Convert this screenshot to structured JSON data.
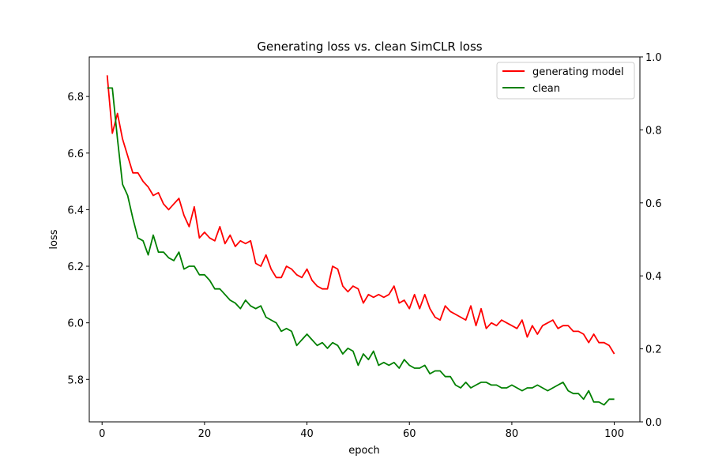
{
  "chart_data": {
    "type": "line",
    "title": "Generating loss vs. clean SimCLR loss",
    "xlabel": "epoch",
    "ylabel": "loss",
    "xlim": [
      -2.5,
      105
    ],
    "ylim": [
      5.65,
      6.94
    ],
    "y2lim": [
      0,
      1
    ],
    "xticks": [
      0,
      20,
      40,
      60,
      80,
      100
    ],
    "yticks": [
      5.8,
      6.0,
      6.2,
      6.4,
      6.6,
      6.8
    ],
    "y2ticks": [
      0.0,
      0.2,
      0.4,
      0.6,
      0.8,
      1.0
    ],
    "grid": false,
    "legend_position": "top-right",
    "x": [
      1,
      2,
      3,
      4,
      5,
      6,
      7,
      8,
      9,
      10,
      11,
      12,
      13,
      14,
      15,
      16,
      17,
      18,
      19,
      20,
      21,
      22,
      23,
      24,
      25,
      26,
      27,
      28,
      29,
      30,
      31,
      32,
      33,
      34,
      35,
      36,
      37,
      38,
      39,
      40,
      41,
      42,
      43,
      44,
      45,
      46,
      47,
      48,
      49,
      50,
      51,
      52,
      53,
      54,
      55,
      56,
      57,
      58,
      59,
      60,
      61,
      62,
      63,
      64,
      65,
      66,
      67,
      68,
      69,
      70,
      71,
      72,
      73,
      74,
      75,
      76,
      77,
      78,
      79,
      80,
      81,
      82,
      83,
      84,
      85,
      86,
      87,
      88,
      89,
      90,
      91,
      92,
      93,
      94,
      95,
      96,
      97,
      98,
      99,
      100
    ],
    "series": [
      {
        "name": "generating model",
        "color": "#ff0000",
        "values": [
          6.875,
          6.67,
          6.74,
          6.65,
          6.59,
          6.53,
          6.53,
          6.5,
          6.48,
          6.45,
          6.46,
          6.42,
          6.4,
          6.42,
          6.44,
          6.38,
          6.34,
          6.41,
          6.3,
          6.32,
          6.3,
          6.29,
          6.34,
          6.28,
          6.31,
          6.27,
          6.29,
          6.28,
          6.29,
          6.21,
          6.2,
          6.24,
          6.19,
          6.16,
          6.16,
          6.2,
          6.19,
          6.17,
          6.16,
          6.19,
          6.15,
          6.13,
          6.12,
          6.12,
          6.2,
          6.19,
          6.13,
          6.11,
          6.13,
          6.12,
          6.07,
          6.1,
          6.09,
          6.1,
          6.09,
          6.1,
          6.13,
          6.07,
          6.08,
          6.05,
          6.1,
          6.05,
          6.1,
          6.05,
          6.02,
          6.01,
          6.06,
          6.04,
          6.03,
          6.02,
          6.01,
          6.06,
          5.99,
          6.05,
          5.98,
          6.0,
          5.99,
          6.01,
          6.0,
          5.99,
          5.98,
          6.01,
          5.95,
          5.99,
          5.96,
          5.99,
          6.0,
          6.01,
          5.98,
          5.99,
          5.99,
          5.97,
          5.97,
          5.96,
          5.93,
          5.96,
          5.93,
          5.93,
          5.92,
          5.89
        ]
      },
      {
        "name": "clean",
        "color": "#008000",
        "values": [
          6.83,
          6.83,
          6.65,
          6.49,
          6.45,
          6.37,
          6.3,
          6.29,
          6.24,
          6.31,
          6.25,
          6.25,
          6.23,
          6.22,
          6.25,
          6.19,
          6.2,
          6.2,
          6.17,
          6.17,
          6.15,
          6.12,
          6.12,
          6.1,
          6.08,
          6.07,
          6.05,
          6.08,
          6.06,
          6.05,
          6.06,
          6.02,
          6.01,
          6.0,
          5.97,
          5.98,
          5.97,
          5.92,
          5.94,
          5.96,
          5.94,
          5.92,
          5.93,
          5.91,
          5.93,
          5.92,
          5.89,
          5.91,
          5.9,
          5.85,
          5.89,
          5.87,
          5.9,
          5.85,
          5.86,
          5.85,
          5.86,
          5.84,
          5.87,
          5.85,
          5.84,
          5.84,
          5.85,
          5.82,
          5.83,
          5.83,
          5.81,
          5.81,
          5.78,
          5.77,
          5.79,
          5.77,
          5.78,
          5.79,
          5.79,
          5.78,
          5.78,
          5.77,
          5.77,
          5.78,
          5.77,
          5.76,
          5.77,
          5.77,
          5.78,
          5.77,
          5.76,
          5.77,
          5.78,
          5.79,
          5.76,
          5.75,
          5.75,
          5.73,
          5.76,
          5.72,
          5.72,
          5.71,
          5.73,
          5.73
        ]
      }
    ]
  }
}
